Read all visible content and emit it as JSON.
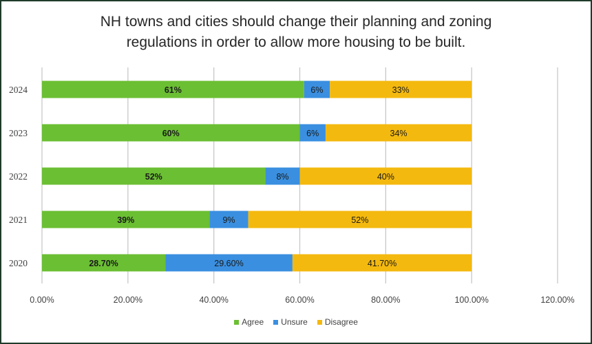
{
  "chart_data": {
    "type": "bar",
    "orientation": "horizontal",
    "stacked": true,
    "title_lines": [
      "NH towns and cities should change their planning and zoning",
      "regulations in order to allow more housing to be built."
    ],
    "title": "NH towns and cities should change their planning and zoning regulations in order to allow more housing to be built.",
    "xlabel": "",
    "ylabel": "",
    "categories": [
      "2024",
      "2023",
      "2022",
      "2021",
      "2020"
    ],
    "series": [
      {
        "name": "Agree",
        "color": "#6bbf33",
        "values": [
          61,
          60,
          52,
          39,
          28.7
        ],
        "labels": [
          "61%",
          "60%",
          "52%",
          "39%",
          "28.70%"
        ]
      },
      {
        "name": "Unsure",
        "color": "#3a8fe0",
        "values": [
          6,
          6,
          8,
          9,
          29.6
        ],
        "labels": [
          "6%",
          "6%",
          "8%",
          "9%",
          "29.60%"
        ]
      },
      {
        "name": "Disagree",
        "color": "#f4b90f",
        "values": [
          33,
          34,
          40,
          52,
          41.7
        ],
        "labels": [
          "33%",
          "34%",
          "40%",
          "52%",
          "41.70%"
        ]
      }
    ],
    "xlim": [
      0,
      120
    ],
    "x_ticks": [
      0,
      20,
      40,
      60,
      80,
      100,
      120
    ],
    "x_tick_labels": [
      "0.00%",
      "20.00%",
      "40.00%",
      "60.00%",
      "80.00%",
      "100.00%",
      "120.00%"
    ],
    "grid": "vertical",
    "legend_position": "bottom"
  }
}
